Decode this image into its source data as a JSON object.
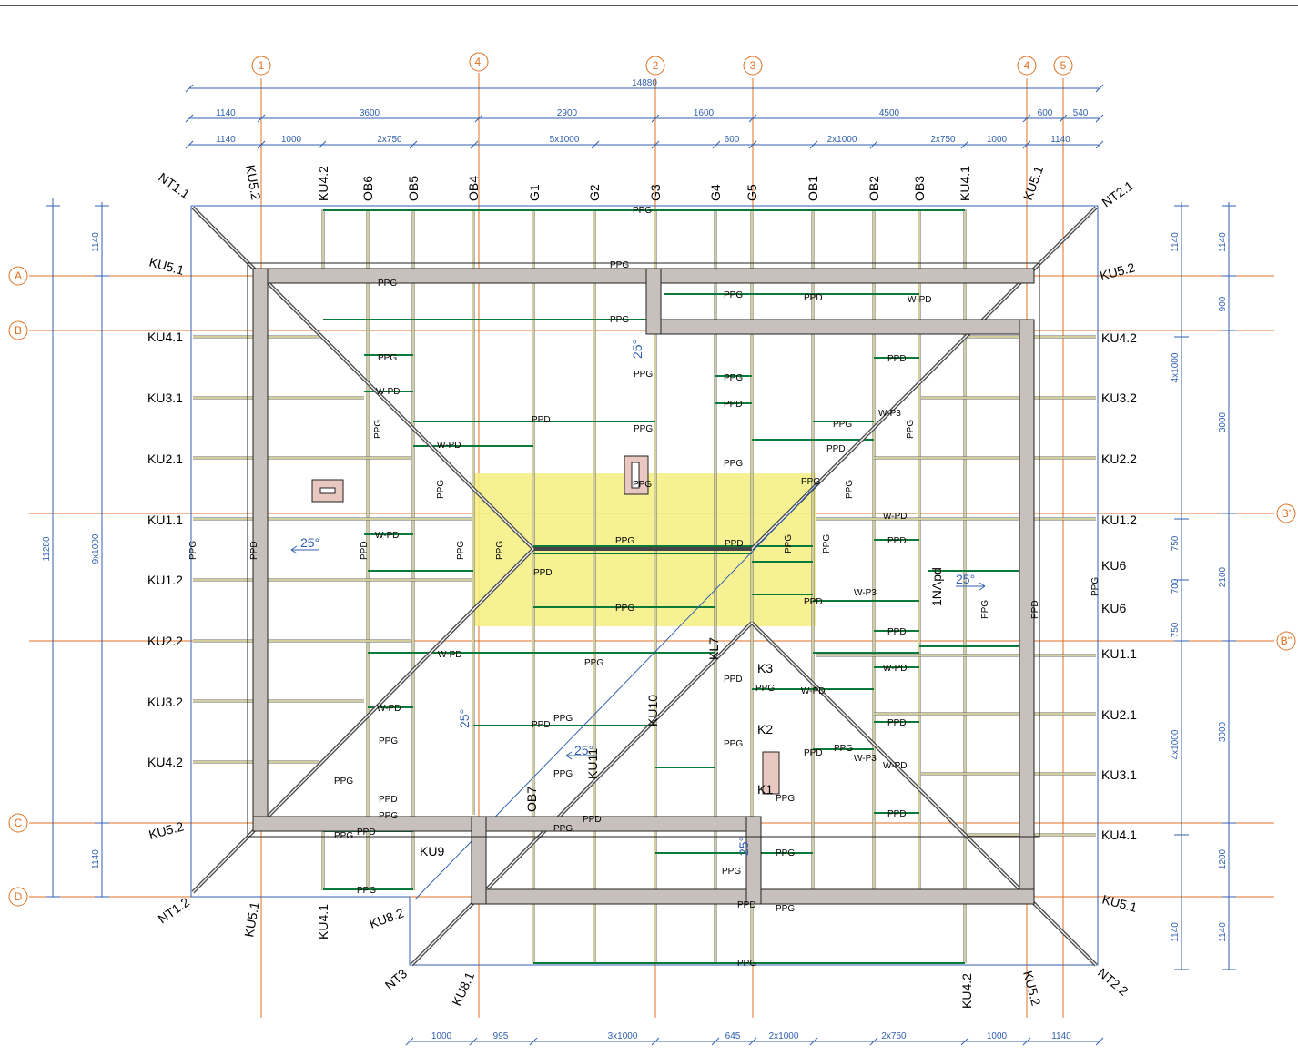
{
  "grid_x": [
    "1",
    "4'",
    "2",
    "3",
    "4",
    "5"
  ],
  "grid_y_left": [
    "A",
    "B",
    "C",
    "D"
  ],
  "grid_y_right": [
    "B'",
    "B''"
  ],
  "dims_top_overall": "14880",
  "dims_top_row1": [
    "1140",
    "3600",
    "2900",
    "1600",
    "4500",
    "600",
    "540"
  ],
  "dims_top_row2": [
    "1140",
    "1000",
    "2x750",
    "5x1000",
    "600",
    "2x1000",
    "2x750",
    "1000",
    "1140"
  ],
  "dims_bottom": [
    "1000",
    "995",
    "3x1000",
    "645",
    "2x1000",
    "2x750",
    "1000",
    "1140"
  ],
  "dims_left_outer": "11280",
  "dims_left_inner": [
    "1140",
    "9x1000",
    "1140"
  ],
  "dims_right_inner": [
    "1140",
    "4x1000",
    "750",
    "700",
    "750",
    "4x1000",
    "1140"
  ],
  "dims_right_outer": [
    "1140",
    "900",
    "3000",
    "2100",
    "3000",
    "1200",
    "1140"
  ],
  "top_labels": [
    "NT1.1",
    "KU5.2",
    "KU4.2",
    "OB6",
    "OB5",
    "OB4",
    "G1",
    "G2",
    "G3",
    "G4",
    "G5",
    "OB1",
    "OB2",
    "OB3",
    "KU4.1",
    "KU5.1",
    "NT2.1"
  ],
  "left_labels": [
    "KU5.1",
    "KU4.1",
    "KU3.1",
    "KU2.1",
    "KU1.1",
    "KU1.2",
    "KU2.2",
    "KU3.2",
    "KU4.2",
    "KU5.2",
    "NT1.2"
  ],
  "right_labels": [
    "KU5.2",
    "KU4.2",
    "KU3.2",
    "KU2.2",
    "KU1.2",
    "KU6",
    "KU6",
    "KU1.1",
    "KU2.1",
    "KU3.1",
    "KU4.1",
    "KU5.1",
    "NT2.2"
  ],
  "bottom_labels": [
    "KU5.1",
    "KU4.1",
    "KU8.2",
    "NT3",
    "KU8.1",
    "KU4.2",
    "KU5.2"
  ],
  "inner_labels": [
    "KU9",
    "K3",
    "K2",
    "K1",
    "KL7",
    "KU10",
    "OB7",
    "KU11",
    "1NApd"
  ],
  "slopes": [
    "25°",
    "25°",
    "25°",
    "25°",
    "25°",
    "25°"
  ],
  "purlin_tags": [
    "PPG",
    "PPD",
    "W-PD",
    "W-P3"
  ]
}
